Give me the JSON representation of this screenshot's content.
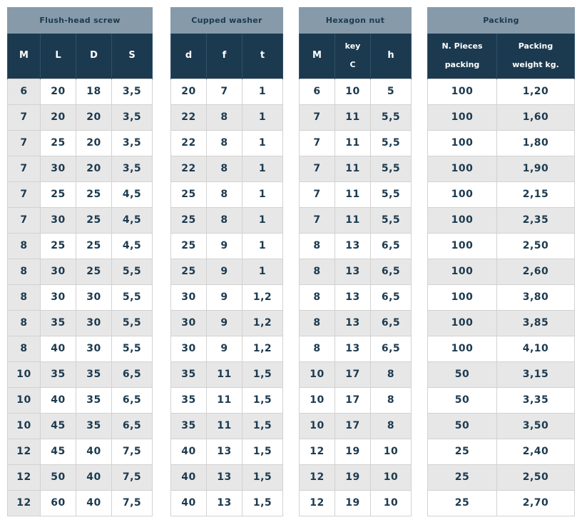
{
  "tables": {
    "screw": {
      "title": "Flush-head screw",
      "cols": [
        "M",
        "L",
        "D",
        "S"
      ],
      "rows": [
        [
          "6",
          "20",
          "18",
          "3,5"
        ],
        [
          "7",
          "20",
          "20",
          "3,5"
        ],
        [
          "7",
          "25",
          "20",
          "3,5"
        ],
        [
          "7",
          "30",
          "20",
          "3,5"
        ],
        [
          "7",
          "25",
          "25",
          "4,5"
        ],
        [
          "7",
          "30",
          "25",
          "4,5"
        ],
        [
          "8",
          "25",
          "25",
          "4,5"
        ],
        [
          "8",
          "30",
          "25",
          "5,5"
        ],
        [
          "8",
          "30",
          "30",
          "5,5"
        ],
        [
          "8",
          "35",
          "30",
          "5,5"
        ],
        [
          "8",
          "40",
          "30",
          "5,5"
        ],
        [
          "10",
          "35",
          "35",
          "6,5"
        ],
        [
          "10",
          "40",
          "35",
          "6,5"
        ],
        [
          "10",
          "45",
          "35",
          "6,5"
        ],
        [
          "12",
          "45",
          "40",
          "7,5"
        ],
        [
          "12",
          "50",
          "40",
          "7,5"
        ],
        [
          "12",
          "60",
          "40",
          "7,5"
        ]
      ]
    },
    "washer": {
      "title": "Cupped washer",
      "cols": [
        "d",
        "f",
        "t"
      ],
      "rows": [
        [
          "20",
          "7",
          "1"
        ],
        [
          "22",
          "8",
          "1"
        ],
        [
          "22",
          "8",
          "1"
        ],
        [
          "22",
          "8",
          "1"
        ],
        [
          "25",
          "8",
          "1"
        ],
        [
          "25",
          "8",
          "1"
        ],
        [
          "25",
          "9",
          "1"
        ],
        [
          "25",
          "9",
          "1"
        ],
        [
          "30",
          "9",
          "1,2"
        ],
        [
          "30",
          "9",
          "1,2"
        ],
        [
          "30",
          "9",
          "1,2"
        ],
        [
          "35",
          "11",
          "1,5"
        ],
        [
          "35",
          "11",
          "1,5"
        ],
        [
          "35",
          "11",
          "1,5"
        ],
        [
          "40",
          "13",
          "1,5"
        ],
        [
          "40",
          "13",
          "1,5"
        ],
        [
          "40",
          "13",
          "1,5"
        ]
      ]
    },
    "nut": {
      "title": "Hexagon nut",
      "cols": [
        "M",
        [
          "key",
          "C"
        ],
        "h"
      ],
      "rows": [
        [
          "6",
          "10",
          "5"
        ],
        [
          "7",
          "11",
          "5,5"
        ],
        [
          "7",
          "11",
          "5,5"
        ],
        [
          "7",
          "11",
          "5,5"
        ],
        [
          "7",
          "11",
          "5,5"
        ],
        [
          "7",
          "11",
          "5,5"
        ],
        [
          "8",
          "13",
          "6,5"
        ],
        [
          "8",
          "13",
          "6,5"
        ],
        [
          "8",
          "13",
          "6,5"
        ],
        [
          "8",
          "13",
          "6,5"
        ],
        [
          "8",
          "13",
          "6,5"
        ],
        [
          "10",
          "17",
          "8"
        ],
        [
          "10",
          "17",
          "8"
        ],
        [
          "10",
          "17",
          "8"
        ],
        [
          "12",
          "19",
          "10"
        ],
        [
          "12",
          "19",
          "10"
        ],
        [
          "12",
          "19",
          "10"
        ]
      ]
    },
    "packing": {
      "title": "Packing",
      "cols": [
        [
          "N. Pieces",
          "packing"
        ],
        [
          "Packing",
          "weight kg."
        ]
      ],
      "rows": [
        [
          "100",
          "1,20"
        ],
        [
          "100",
          "1,60"
        ],
        [
          "100",
          "1,80"
        ],
        [
          "100",
          "1,90"
        ],
        [
          "100",
          "2,15"
        ],
        [
          "100",
          "2,35"
        ],
        [
          "100",
          "2,50"
        ],
        [
          "100",
          "2,60"
        ],
        [
          "100",
          "3,80"
        ],
        [
          "100",
          "3,85"
        ],
        [
          "100",
          "4,10"
        ],
        [
          "50",
          "3,15"
        ],
        [
          "50",
          "3,35"
        ],
        [
          "50",
          "3,50"
        ],
        [
          "25",
          "2,40"
        ],
        [
          "25",
          "2,50"
        ],
        [
          "25",
          "2,70"
        ]
      ]
    }
  },
  "colors": {
    "group_header_bg": "#869aaa",
    "column_header_bg": "#1c3a4f",
    "text": "#1c3a4f",
    "row_alt_bg": "#e7e7e7"
  }
}
